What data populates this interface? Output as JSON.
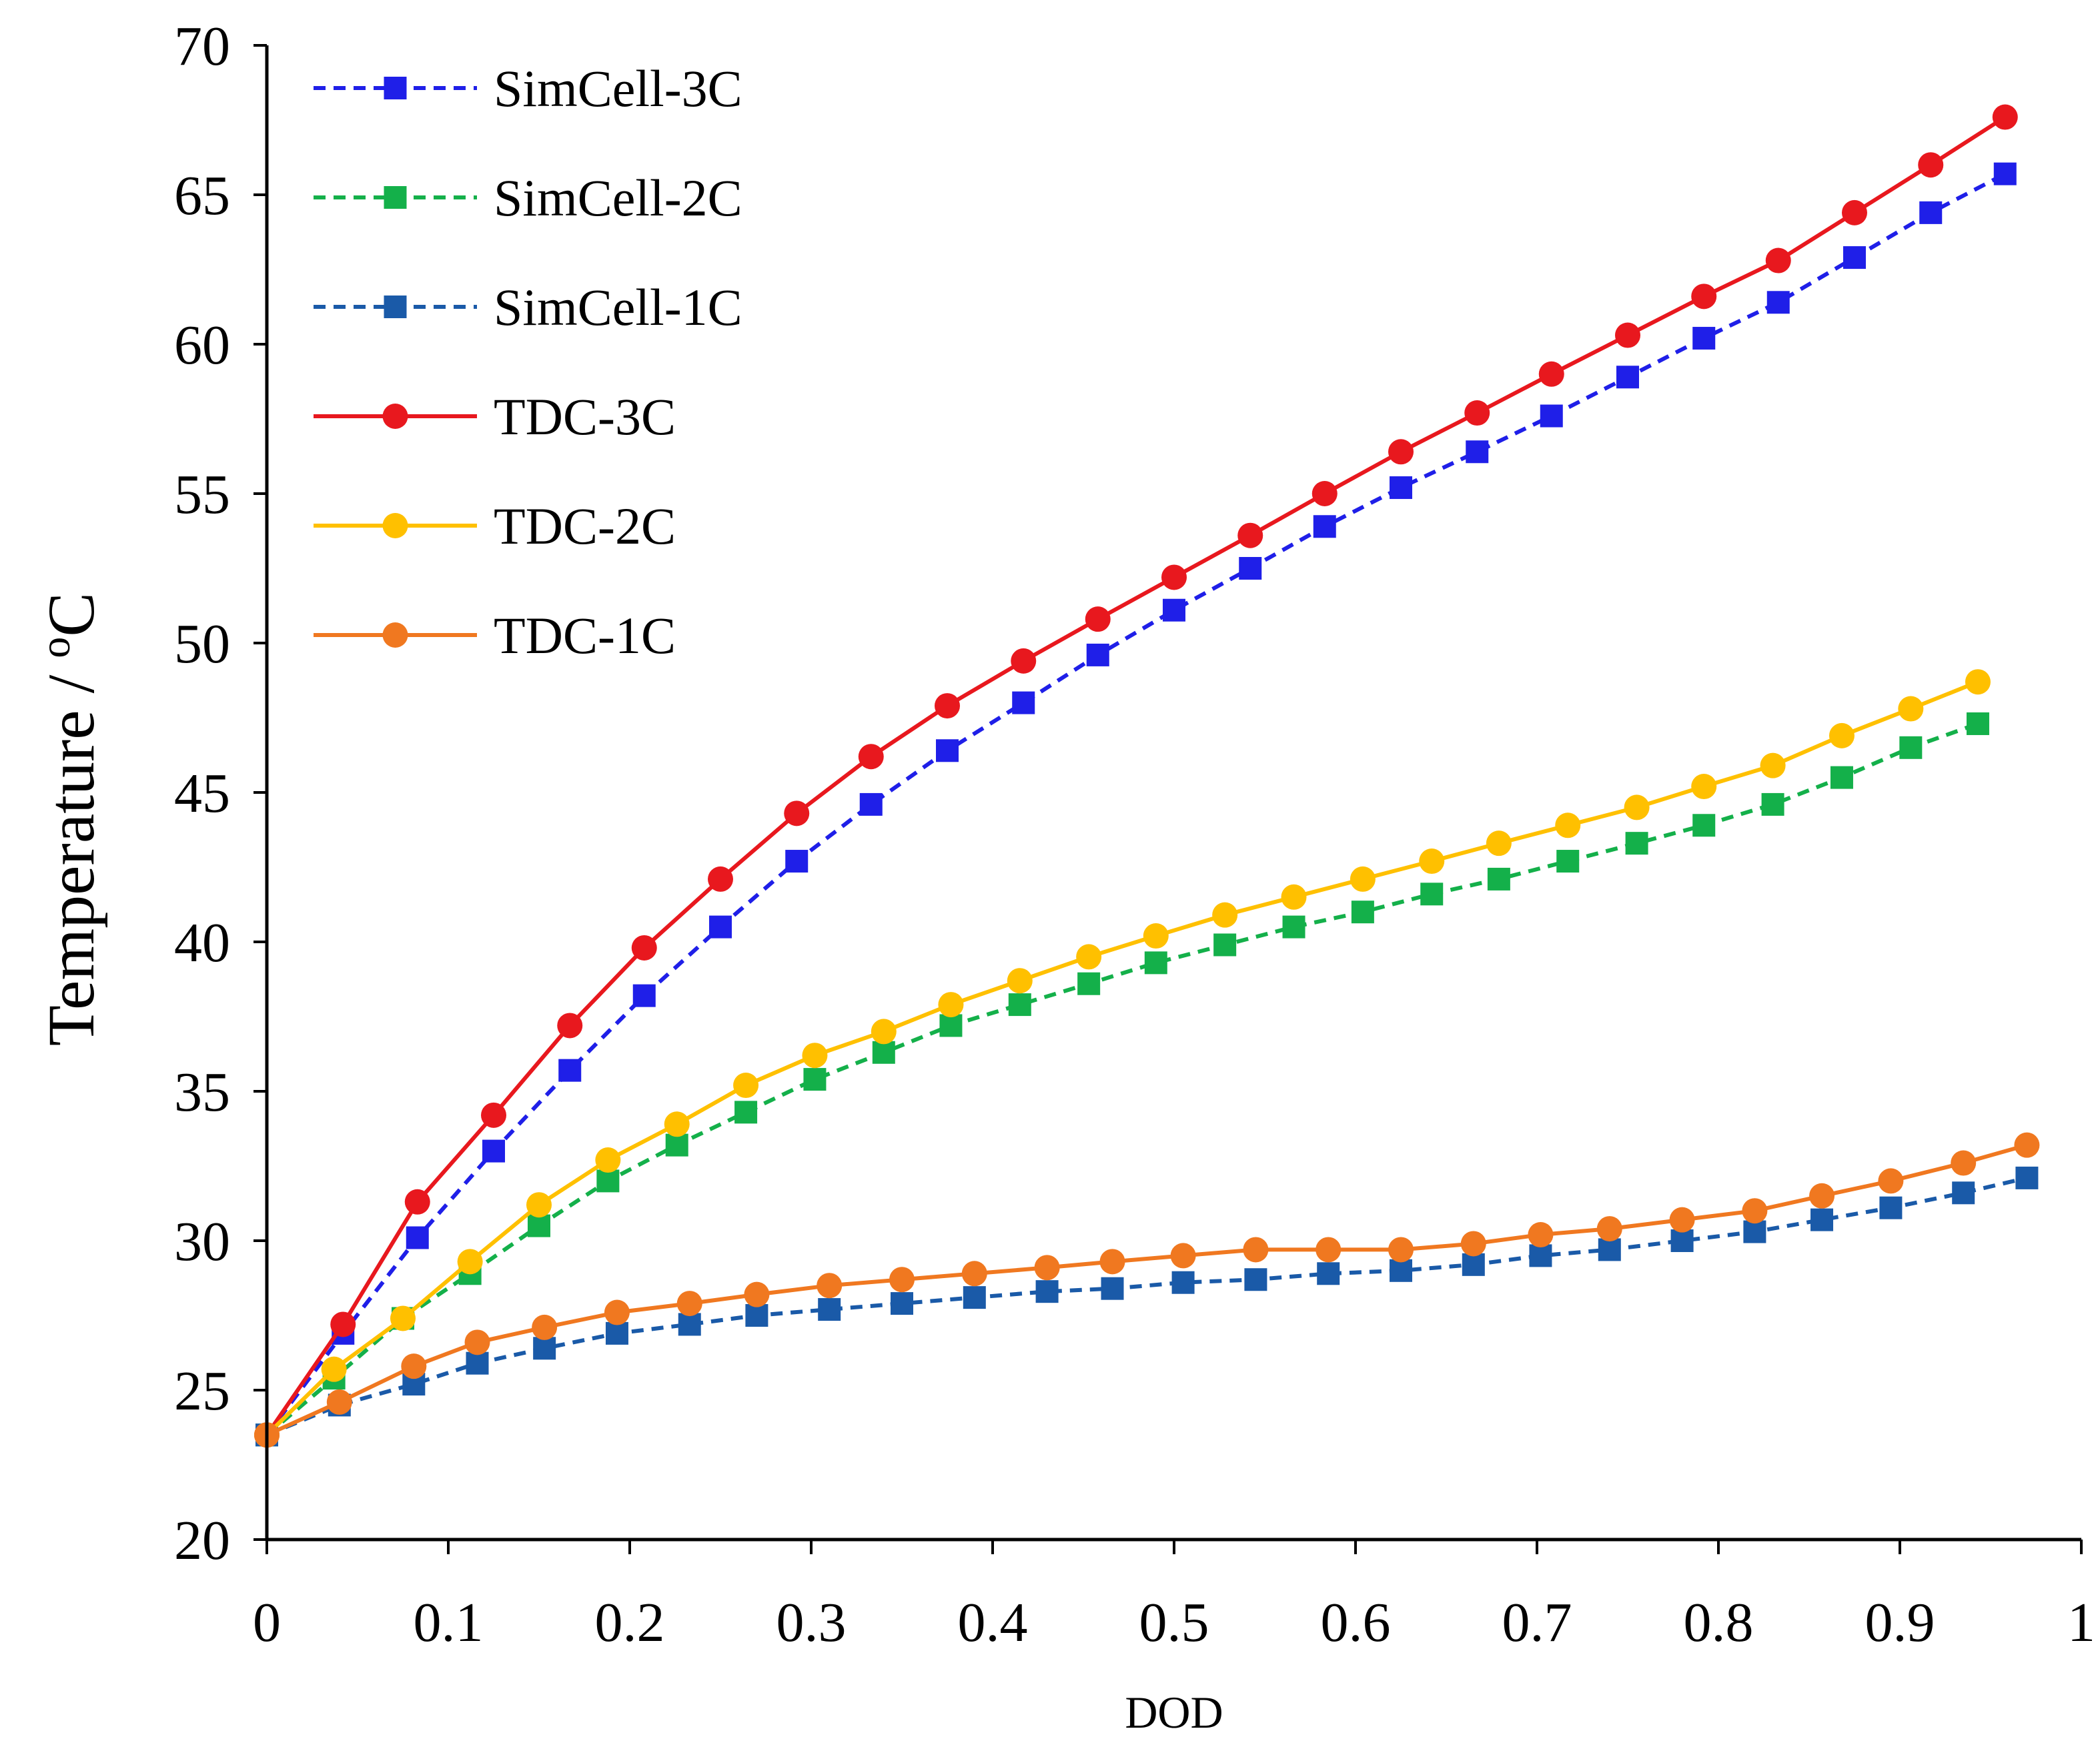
{
  "chart_data": {
    "type": "line",
    "title": "",
    "xlabel": "DOD",
    "ylabel": "Temperature / ",
    "ylabel_unit": "oC",
    "xlim": [
      0,
      1
    ],
    "ylim": [
      20,
      70
    ],
    "xticks": [
      0,
      0.1,
      0.2,
      0.3,
      0.4,
      0.5,
      0.6,
      0.7,
      0.8,
      0.9,
      1
    ],
    "xtick_labels": [
      "0",
      "0.1",
      "0.2",
      "0.3",
      "0.4",
      "0.5",
      "0.6",
      "0.7",
      "0.8",
      "0.9",
      "1"
    ],
    "yticks": [
      20,
      25,
      30,
      35,
      40,
      45,
      50,
      55,
      60,
      65,
      70
    ],
    "ytick_labels": [
      "20",
      "25",
      "30",
      "35",
      "40",
      "45",
      "50",
      "55",
      "60",
      "65",
      "70"
    ],
    "grid": false,
    "legend_position": "top-left",
    "series": [
      {
        "name": "SimCell-3C",
        "color": "#1f1fe8",
        "marker": "square",
        "line_style": "dashed",
        "x": [
          0,
          0.042,
          0.083,
          0.125,
          0.167,
          0.208,
          0.25,
          0.292,
          0.333,
          0.375,
          0.417,
          0.458,
          0.5,
          0.542,
          0.583,
          0.625,
          0.667,
          0.708,
          0.75,
          0.792,
          0.833,
          0.875,
          0.917,
          0.958
        ],
        "y": [
          23.5,
          26.9,
          30.1,
          33.0,
          35.7,
          38.2,
          40.5,
          42.7,
          44.6,
          46.4,
          48.0,
          49.6,
          51.1,
          52.5,
          53.9,
          55.2,
          56.4,
          57.6,
          58.9,
          60.2,
          61.4,
          62.9,
          64.4,
          65.7
        ]
      },
      {
        "name": "SimCell-2C",
        "color": "#14b04a",
        "marker": "square",
        "line_style": "dashed",
        "x": [
          0,
          0.037,
          0.075,
          0.112,
          0.15,
          0.188,
          0.226,
          0.264,
          0.302,
          0.34,
          0.377,
          0.415,
          0.453,
          0.49,
          0.528,
          0.566,
          0.604,
          0.642,
          0.679,
          0.717,
          0.755,
          0.792,
          0.83,
          0.868,
          0.906,
          0.943
        ],
        "y": [
          23.5,
          25.4,
          27.4,
          28.9,
          30.5,
          32.0,
          33.2,
          34.3,
          35.4,
          36.3,
          37.2,
          37.9,
          38.6,
          39.3,
          39.9,
          40.5,
          41.0,
          41.6,
          42.1,
          42.7,
          43.3,
          43.9,
          44.6,
          45.5,
          46.5,
          47.3
        ]
      },
      {
        "name": "SimCell-1C",
        "color": "#1a5aa8",
        "marker": "square",
        "line_style": "dashed",
        "x": [
          0,
          0.04,
          0.081,
          0.116,
          0.153,
          0.193,
          0.233,
          0.27,
          0.31,
          0.35,
          0.39,
          0.43,
          0.466,
          0.505,
          0.545,
          0.585,
          0.625,
          0.665,
          0.702,
          0.74,
          0.78,
          0.82,
          0.857,
          0.895,
          0.935,
          0.97
        ],
        "y": [
          23.5,
          24.5,
          25.2,
          25.9,
          26.4,
          26.9,
          27.2,
          27.5,
          27.7,
          27.9,
          28.1,
          28.3,
          28.4,
          28.6,
          28.7,
          28.9,
          29.0,
          29.2,
          29.5,
          29.7,
          30.0,
          30.3,
          30.7,
          31.1,
          31.6,
          32.1
        ]
      },
      {
        "name": "TDC-3C",
        "color": "#e8181e",
        "marker": "circle",
        "line_style": "solid",
        "x": [
          0,
          0.042,
          0.083,
          0.125,
          0.167,
          0.208,
          0.25,
          0.292,
          0.333,
          0.375,
          0.417,
          0.458,
          0.5,
          0.542,
          0.583,
          0.625,
          0.667,
          0.708,
          0.75,
          0.792,
          0.833,
          0.875,
          0.917,
          0.958
        ],
        "y": [
          23.5,
          27.2,
          31.3,
          34.2,
          37.2,
          39.8,
          42.1,
          44.3,
          46.2,
          47.9,
          49.4,
          50.8,
          52.2,
          53.6,
          55.0,
          56.4,
          57.7,
          59.0,
          60.3,
          61.6,
          62.8,
          64.4,
          66.0,
          67.6
        ]
      },
      {
        "name": "TDC-2C",
        "color": "#ffc000",
        "marker": "circle",
        "line_style": "solid",
        "x": [
          0,
          0.037,
          0.075,
          0.112,
          0.15,
          0.188,
          0.226,
          0.264,
          0.302,
          0.34,
          0.377,
          0.415,
          0.453,
          0.49,
          0.528,
          0.566,
          0.604,
          0.642,
          0.679,
          0.717,
          0.755,
          0.792,
          0.83,
          0.868,
          0.906,
          0.943
        ],
        "y": [
          23.5,
          25.7,
          27.4,
          29.3,
          31.2,
          32.7,
          33.9,
          35.2,
          36.2,
          37.0,
          37.9,
          38.7,
          39.5,
          40.2,
          40.9,
          41.5,
          42.1,
          42.7,
          43.3,
          43.9,
          44.5,
          45.2,
          45.9,
          46.9,
          47.8,
          48.7
        ]
      },
      {
        "name": "TDC-1C",
        "color": "#f07820",
        "marker": "circle",
        "line_style": "solid",
        "x": [
          0,
          0.04,
          0.081,
          0.116,
          0.153,
          0.193,
          0.233,
          0.27,
          0.31,
          0.35,
          0.39,
          0.43,
          0.466,
          0.505,
          0.545,
          0.585,
          0.625,
          0.665,
          0.702,
          0.74,
          0.78,
          0.82,
          0.857,
          0.895,
          0.935,
          0.97
        ],
        "y": [
          23.5,
          24.6,
          25.8,
          26.6,
          27.1,
          27.6,
          27.9,
          28.2,
          28.5,
          28.7,
          28.9,
          29.1,
          29.3,
          29.5,
          29.7,
          29.7,
          29.7,
          29.9,
          30.2,
          30.4,
          30.7,
          31.0,
          31.5,
          32.0,
          32.6,
          33.2
        ]
      }
    ]
  }
}
